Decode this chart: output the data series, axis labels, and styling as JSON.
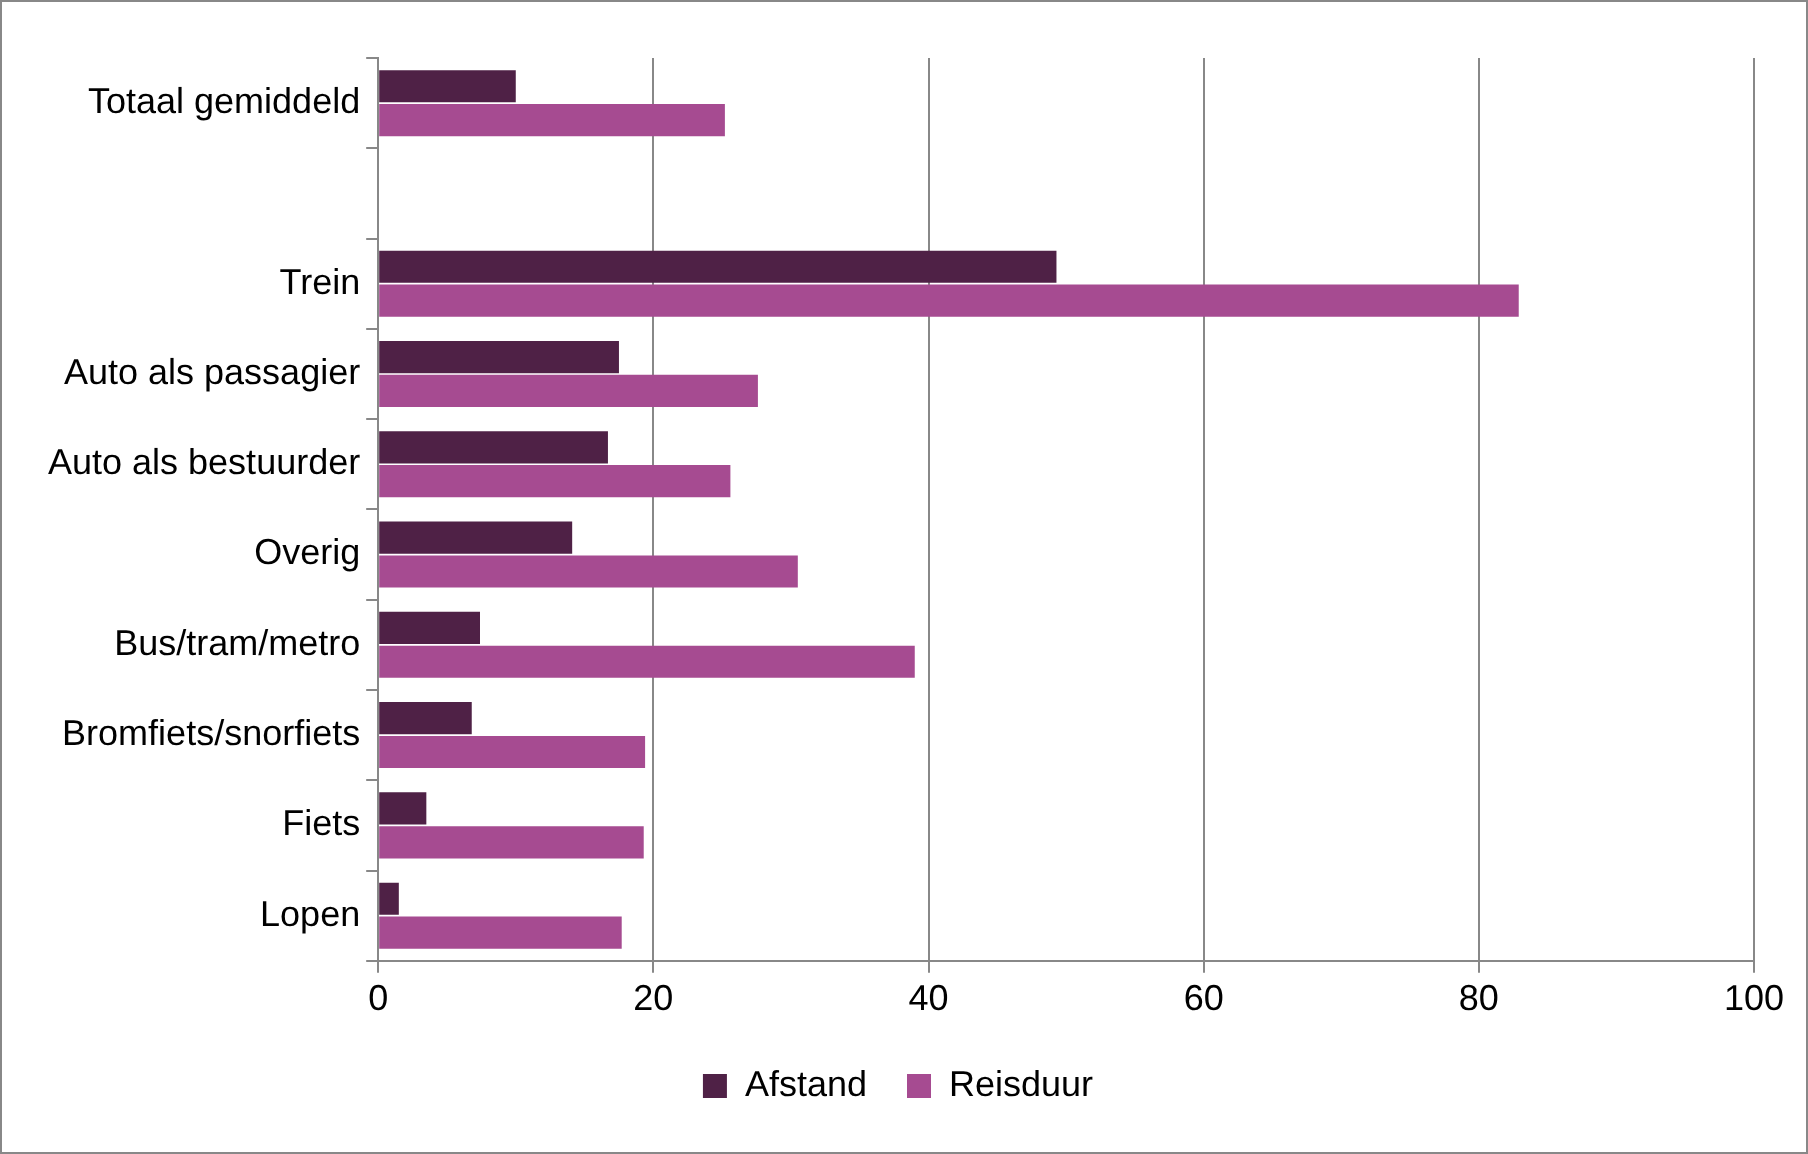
{
  "chart_data": {
    "type": "bar",
    "orientation": "horizontal",
    "categories": [
      "Totaal gemiddeld",
      null,
      "Trein",
      "Auto als passagier",
      "Auto als bestuurder",
      "Overig",
      "Bus/tram/metro",
      "Bromfiets/snorfiets",
      "Fiets",
      "Lopen"
    ],
    "series": [
      {
        "name": "Afstand",
        "color": "#4f2146",
        "values": [
          10.0,
          null,
          49.3,
          17.5,
          16.7,
          14.1,
          7.4,
          6.8,
          3.5,
          1.5
        ]
      },
      {
        "name": "Reisduur",
        "color": "#a64b91",
        "values": [
          25.2,
          null,
          82.9,
          27.6,
          25.6,
          30.5,
          39.0,
          19.4,
          19.3,
          17.7
        ]
      }
    ],
    "xlim": [
      0,
      100
    ],
    "xticks": [
      0,
      20,
      40,
      60,
      80,
      100
    ],
    "grid": "x",
    "legend": "bottom"
  }
}
